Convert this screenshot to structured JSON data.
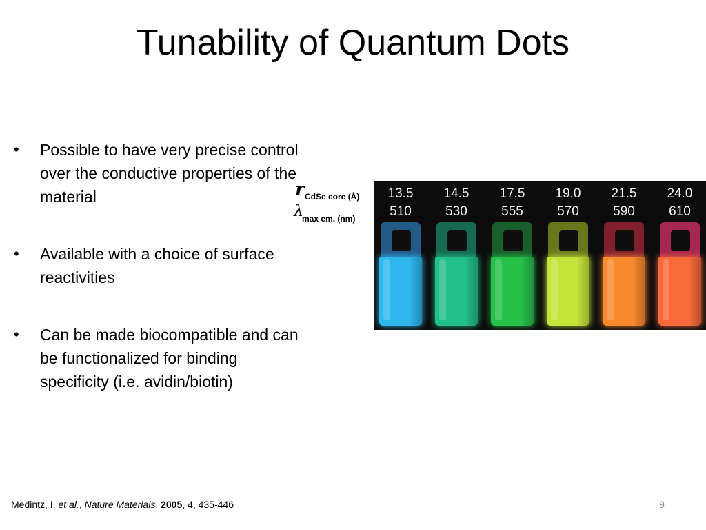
{
  "slide": {
    "title": "Tunability of Quantum Dots",
    "page_number": "9"
  },
  "bullets": [
    "Possible to have very precise control over the conductive properties of the material",
    "Available with a choice of surface reactivities",
    "Can be made biocompatible and can be functionalized for binding specificity (i.e. avidin/biotin)"
  ],
  "labels": {
    "radius_symbol": "r",
    "radius_subscript": "CdSe core (Å)",
    "lambda_symbol": "λ",
    "lambda_subscript": "max em. (nm)"
  },
  "vials": [
    {
      "radius": "13.5",
      "wavelength": "510",
      "color": "#2fb7ee",
      "cap_color": "#2c74b0"
    },
    {
      "radius": "14.5",
      "wavelength": "530",
      "color": "#22c08a",
      "cap_color": "#1a8a6a"
    },
    {
      "radius": "17.5",
      "wavelength": "555",
      "color": "#27c04a",
      "cap_color": "#1e7a36"
    },
    {
      "radius": "19.0",
      "wavelength": "570",
      "color": "#c5e43a",
      "cap_color": "#8a9a22"
    },
    {
      "radius": "21.5",
      "wavelength": "590",
      "color": "#f88a2e",
      "cap_color": "#a8263a"
    },
    {
      "radius": "24.0",
      "wavelength": "610",
      "color": "#f86a3a",
      "cap_color": "#d8306a"
    }
  ],
  "citation": {
    "author": "Medintz, I. ",
    "etal": "et al.",
    "sep1": ", ",
    "journal": "Nature Materials",
    "sep2": ", ",
    "year": "2005",
    "rest": ", 4, 435-446"
  }
}
